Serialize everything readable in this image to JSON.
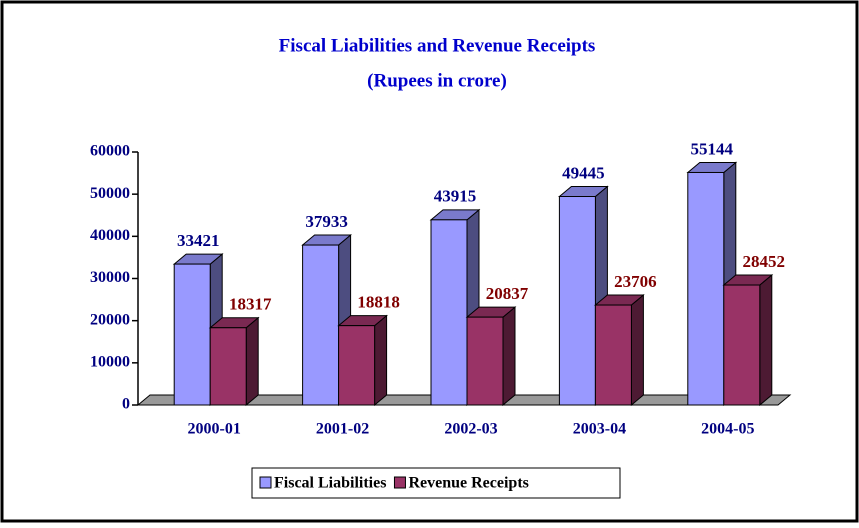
{
  "chart_data": {
    "type": "bar3d",
    "title": "Fiscal Liabilities and Revenue Receipts",
    "subtitle": "(Rupees in crore)",
    "categories": [
      "2000-01",
      "2001-02",
      "2002-03",
      "2003-04",
      "2004-05"
    ],
    "series": [
      {
        "name": "Fiscal Liabilities",
        "color": "#9999ff",
        "values": [
          33421,
          37933,
          43915,
          49445,
          55144
        ]
      },
      {
        "name": "Revenue Receipts",
        "color": "#993366",
        "values": [
          18317,
          18818,
          20837,
          23706,
          28452
        ]
      }
    ],
    "ylim": [
      0,
      60000
    ],
    "yticks": [
      0,
      10000,
      20000,
      30000,
      40000,
      50000,
      60000
    ]
  }
}
